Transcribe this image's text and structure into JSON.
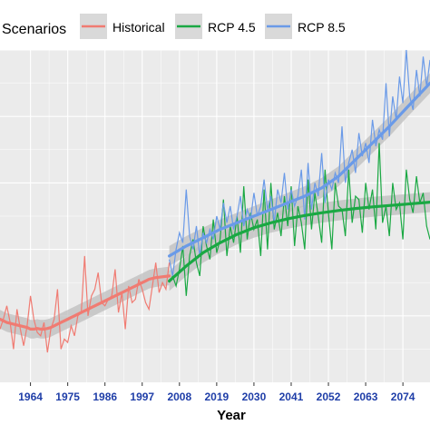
{
  "chart_data": {
    "type": "line",
    "title": "",
    "xlabel": "Year",
    "ylabel": "",
    "legend_title": "Scenarios",
    "legend_position": "top",
    "grid": true,
    "xlim": [
      1955,
      2082
    ],
    "ylim": [
      0,
      10
    ],
    "xticks": [
      1964,
      1975,
      1986,
      1997,
      2008,
      2019,
      2030,
      2041,
      2052,
      2063,
      2074
    ],
    "colors": {
      "Historical": "#f07b72",
      "RCP 4.5": "#1aa843",
      "RCP 8.5": "#6a9ae8",
      "panel": "#ebebeb",
      "ribbon": "#bdbdbd"
    },
    "series": [
      {
        "name": "Historical",
        "x": [
          1955,
          1956,
          1957,
          1958,
          1959,
          1960,
          1961,
          1962,
          1963,
          1964,
          1965,
          1966,
          1967,
          1968,
          1969,
          1970,
          1971,
          1972,
          1973,
          1974,
          1975,
          1976,
          1977,
          1978,
          1979,
          1980,
          1981,
          1982,
          1983,
          1984,
          1985,
          1986,
          1987,
          1988,
          1989,
          1990,
          1991,
          1992,
          1993,
          1994,
          1995,
          1996,
          1997,
          1998,
          1999,
          2000,
          2001,
          2002,
          2003,
          2004,
          2005
        ],
        "values": [
          1.6,
          1.9,
          2.3,
          1.8,
          1.0,
          2.2,
          1.6,
          1.1,
          1.7,
          2.6,
          1.9,
          1.5,
          1.4,
          1.8,
          0.9,
          1.6,
          1.9,
          2.8,
          1.0,
          1.3,
          1.2,
          1.7,
          1.4,
          2.0,
          2.1,
          3.8,
          2.0,
          2.6,
          2.8,
          3.3,
          2.4,
          2.3,
          2.5,
          2.6,
          3.4,
          2.1,
          2.7,
          1.6,
          2.9,
          2.4,
          2.5,
          3.1,
          2.8,
          2.4,
          2.2,
          2.9,
          3.6,
          2.7,
          3.0,
          2.8,
          3.6
        ],
        "trend": [
          1.9,
          1.8,
          1.75,
          1.7,
          1.65,
          1.6,
          1.6,
          1.62,
          1.6,
          1.6,
          1.62,
          1.65,
          1.7,
          1.75,
          1.8,
          1.85,
          1.9,
          1.95,
          2.0,
          2.05,
          2.1,
          2.15,
          2.2,
          2.25,
          2.3,
          2.35,
          2.4,
          2.45,
          2.5,
          2.55,
          2.6,
          2.65,
          2.7,
          2.75,
          2.8,
          2.85,
          2.9,
          2.95,
          3.0,
          3.05,
          3.1,
          3.15,
          3.2
        ],
        "trend_x": [
          1955,
          1957,
          1959,
          1961,
          1963,
          1964,
          1965,
          1966,
          1967,
          1968,
          1969,
          1970,
          1971,
          1972,
          1973,
          1974,
          1975,
          1976,
          1977,
          1978,
          1979,
          1980,
          1981,
          1982,
          1983,
          1984,
          1985,
          1986,
          1987,
          1988,
          1989,
          1990,
          1991,
          1992,
          1993,
          1994,
          1995,
          1996,
          1997,
          1998,
          1999,
          2001,
          2005
        ]
      },
      {
        "name": "RCP 4.5",
        "x": [
          2005,
          2006,
          2007,
          2008,
          2009,
          2010,
          2011,
          2012,
          2013,
          2014,
          2015,
          2016,
          2017,
          2018,
          2019,
          2020,
          2021,
          2022,
          2023,
          2024,
          2025,
          2026,
          2027,
          2028,
          2029,
          2030,
          2031,
          2032,
          2033,
          2034,
          2035,
          2036,
          2037,
          2038,
          2039,
          2040,
          2041,
          2042,
          2043,
          2044,
          2045,
          2046,
          2047,
          2048,
          2049,
          2050,
          2051,
          2052,
          2053,
          2054,
          2055,
          2056,
          2057,
          2058,
          2059,
          2060,
          2061,
          2062,
          2063,
          2064,
          2065,
          2066,
          2067,
          2068,
          2069,
          2070,
          2071,
          2072,
          2073,
          2074,
          2075,
          2076,
          2077,
          2078,
          2079,
          2080,
          2081,
          2082
        ],
        "values": [
          3.0,
          3.2,
          2.9,
          3.4,
          4.1,
          2.6,
          3.8,
          4.3,
          3.6,
          3.2,
          4.7,
          4.1,
          3.7,
          4.9,
          3.9,
          4.3,
          5.5,
          3.8,
          4.7,
          4.2,
          5.0,
          3.9,
          5.9,
          4.3,
          5.1,
          4.6,
          4.9,
          3.8,
          5.8,
          4.0,
          6.0,
          4.6,
          5.1,
          4.4,
          5.6,
          4.7,
          5.9,
          4.1,
          5.3,
          4.8,
          4.0,
          6.1,
          4.6,
          5.7,
          5.0,
          4.2,
          6.4,
          5.1,
          4.0,
          6.0,
          5.3,
          5.2,
          4.4,
          6.4,
          4.8,
          5.6,
          5.5,
          4.5,
          6.0,
          5.2,
          5.8,
          4.6,
          7.2,
          4.8,
          5.3,
          4.4,
          6.0,
          5.2,
          5.4,
          4.3,
          6.4,
          5.5,
          5.1,
          6.2,
          5.4,
          5.7,
          4.7,
          4.3
        ],
        "trend_x": [
          2005,
          2010,
          2015,
          2020,
          2025,
          2030,
          2035,
          2040,
          2045,
          2050,
          2055,
          2060,
          2065,
          2070,
          2075,
          2082
        ],
        "trend": [
          3.05,
          3.5,
          3.9,
          4.2,
          4.45,
          4.65,
          4.8,
          4.92,
          5.02,
          5.1,
          5.17,
          5.23,
          5.28,
          5.32,
          5.36,
          5.42
        ]
      },
      {
        "name": "RCP 8.5",
        "x": [
          2005,
          2006,
          2007,
          2008,
          2009,
          2010,
          2011,
          2012,
          2013,
          2014,
          2015,
          2016,
          2017,
          2018,
          2019,
          2020,
          2021,
          2022,
          2023,
          2024,
          2025,
          2026,
          2027,
          2028,
          2029,
          2030,
          2031,
          2032,
          2033,
          2034,
          2035,
          2036,
          2037,
          2038,
          2039,
          2040,
          2041,
          2042,
          2043,
          2044,
          2045,
          2046,
          2047,
          2048,
          2049,
          2050,
          2051,
          2052,
          2053,
          2054,
          2055,
          2056,
          2057,
          2058,
          2059,
          2060,
          2061,
          2062,
          2063,
          2064,
          2065,
          2066,
          2067,
          2068,
          2069,
          2070,
          2071,
          2072,
          2073,
          2074,
          2075,
          2076,
          2077,
          2078,
          2079,
          2080,
          2081,
          2082
        ],
        "values": [
          3.7,
          3.2,
          4.0,
          4.5,
          4.2,
          5.8,
          4.4,
          4.0,
          4.7,
          3.8,
          4.5,
          4.2,
          4.6,
          4.3,
          5.0,
          4.6,
          5.4,
          4.8,
          5.3,
          4.6,
          5.0,
          5.6,
          4.7,
          5.2,
          4.9,
          5.7,
          5.0,
          5.3,
          6.1,
          5.2,
          5.6,
          4.8,
          5.8,
          5.4,
          6.3,
          5.2,
          5.8,
          5.3,
          5.6,
          6.4,
          4.9,
          6.6,
          5.2,
          6.0,
          5.6,
          6.9,
          5.4,
          6.1,
          5.8,
          6.3,
          6.0,
          7.7,
          6.0,
          6.6,
          7.0,
          6.3,
          7.5,
          6.8,
          7.2,
          6.6,
          7.9,
          7.1,
          7.6,
          7.3,
          9.0,
          7.4,
          8.6,
          7.9,
          9.2,
          8.4,
          10.0,
          8.6,
          8.2,
          9.4,
          8.6,
          9.8,
          8.9,
          9.7
        ],
        "trend_x": [
          2005,
          2010,
          2015,
          2020,
          2025,
          2030,
          2035,
          2040,
          2045,
          2050,
          2055,
          2060,
          2065,
          2070,
          2075,
          2082
        ],
        "trend": [
          3.8,
          4.1,
          4.35,
          4.6,
          4.8,
          5.0,
          5.2,
          5.4,
          5.6,
          5.85,
          6.2,
          6.7,
          7.2,
          7.7,
          8.25,
          9.0
        ]
      }
    ]
  }
}
